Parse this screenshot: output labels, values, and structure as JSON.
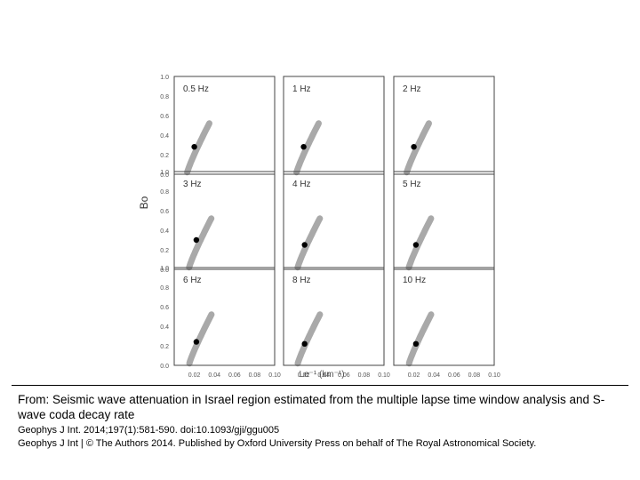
{
  "chart_data": {
    "type": "scatter",
    "ylabel": "Bo",
    "xlabel": "Le⁻¹ (km⁻¹)",
    "xlim": [
      0,
      0.1
    ],
    "ylim": [
      0,
      1.0
    ],
    "xticks": [
      "0.02",
      "0.04",
      "0.06",
      "0.08",
      "0.10"
    ],
    "yticks": [
      "0.0",
      "0.2",
      "0.4",
      "0.6",
      "0.8",
      "1.0"
    ],
    "grid": false,
    "series_color": "#000000",
    "band_color": "#9a9a9a",
    "panels": [
      {
        "label": "0.5 Hz",
        "best_fit": {
          "x": 0.02,
          "y": 0.28
        }
      },
      {
        "label": "1 Hz",
        "best_fit": {
          "x": 0.02,
          "y": 0.28
        }
      },
      {
        "label": "2 Hz",
        "best_fit": {
          "x": 0.02,
          "y": 0.28
        }
      },
      {
        "label": "3 Hz",
        "best_fit": {
          "x": 0.022,
          "y": 0.3
        }
      },
      {
        "label": "4 Hz",
        "best_fit": {
          "x": 0.021,
          "y": 0.25
        }
      },
      {
        "label": "5 Hz",
        "best_fit": {
          "x": 0.022,
          "y": 0.25
        }
      },
      {
        "label": "6 Hz",
        "best_fit": {
          "x": 0.022,
          "y": 0.24
        }
      },
      {
        "label": "8 Hz",
        "best_fit": {
          "x": 0.021,
          "y": 0.22
        }
      },
      {
        "label": "10 Hz",
        "best_fit": {
          "x": 0.022,
          "y": 0.22
        }
      }
    ]
  },
  "caption": {
    "title": "From: Seismic wave attenuation in Israel region estimated from the multiple lapse time window analysis and S-wave coda decay rate",
    "citation": "Geophys J Int. 2014;197(1):581-590. doi:10.1093/gji/ggu005",
    "copyright": "Geophys J Int | © The Authors 2014. Published by Oxford University Press on behalf of The Royal Astronomical Society."
  }
}
